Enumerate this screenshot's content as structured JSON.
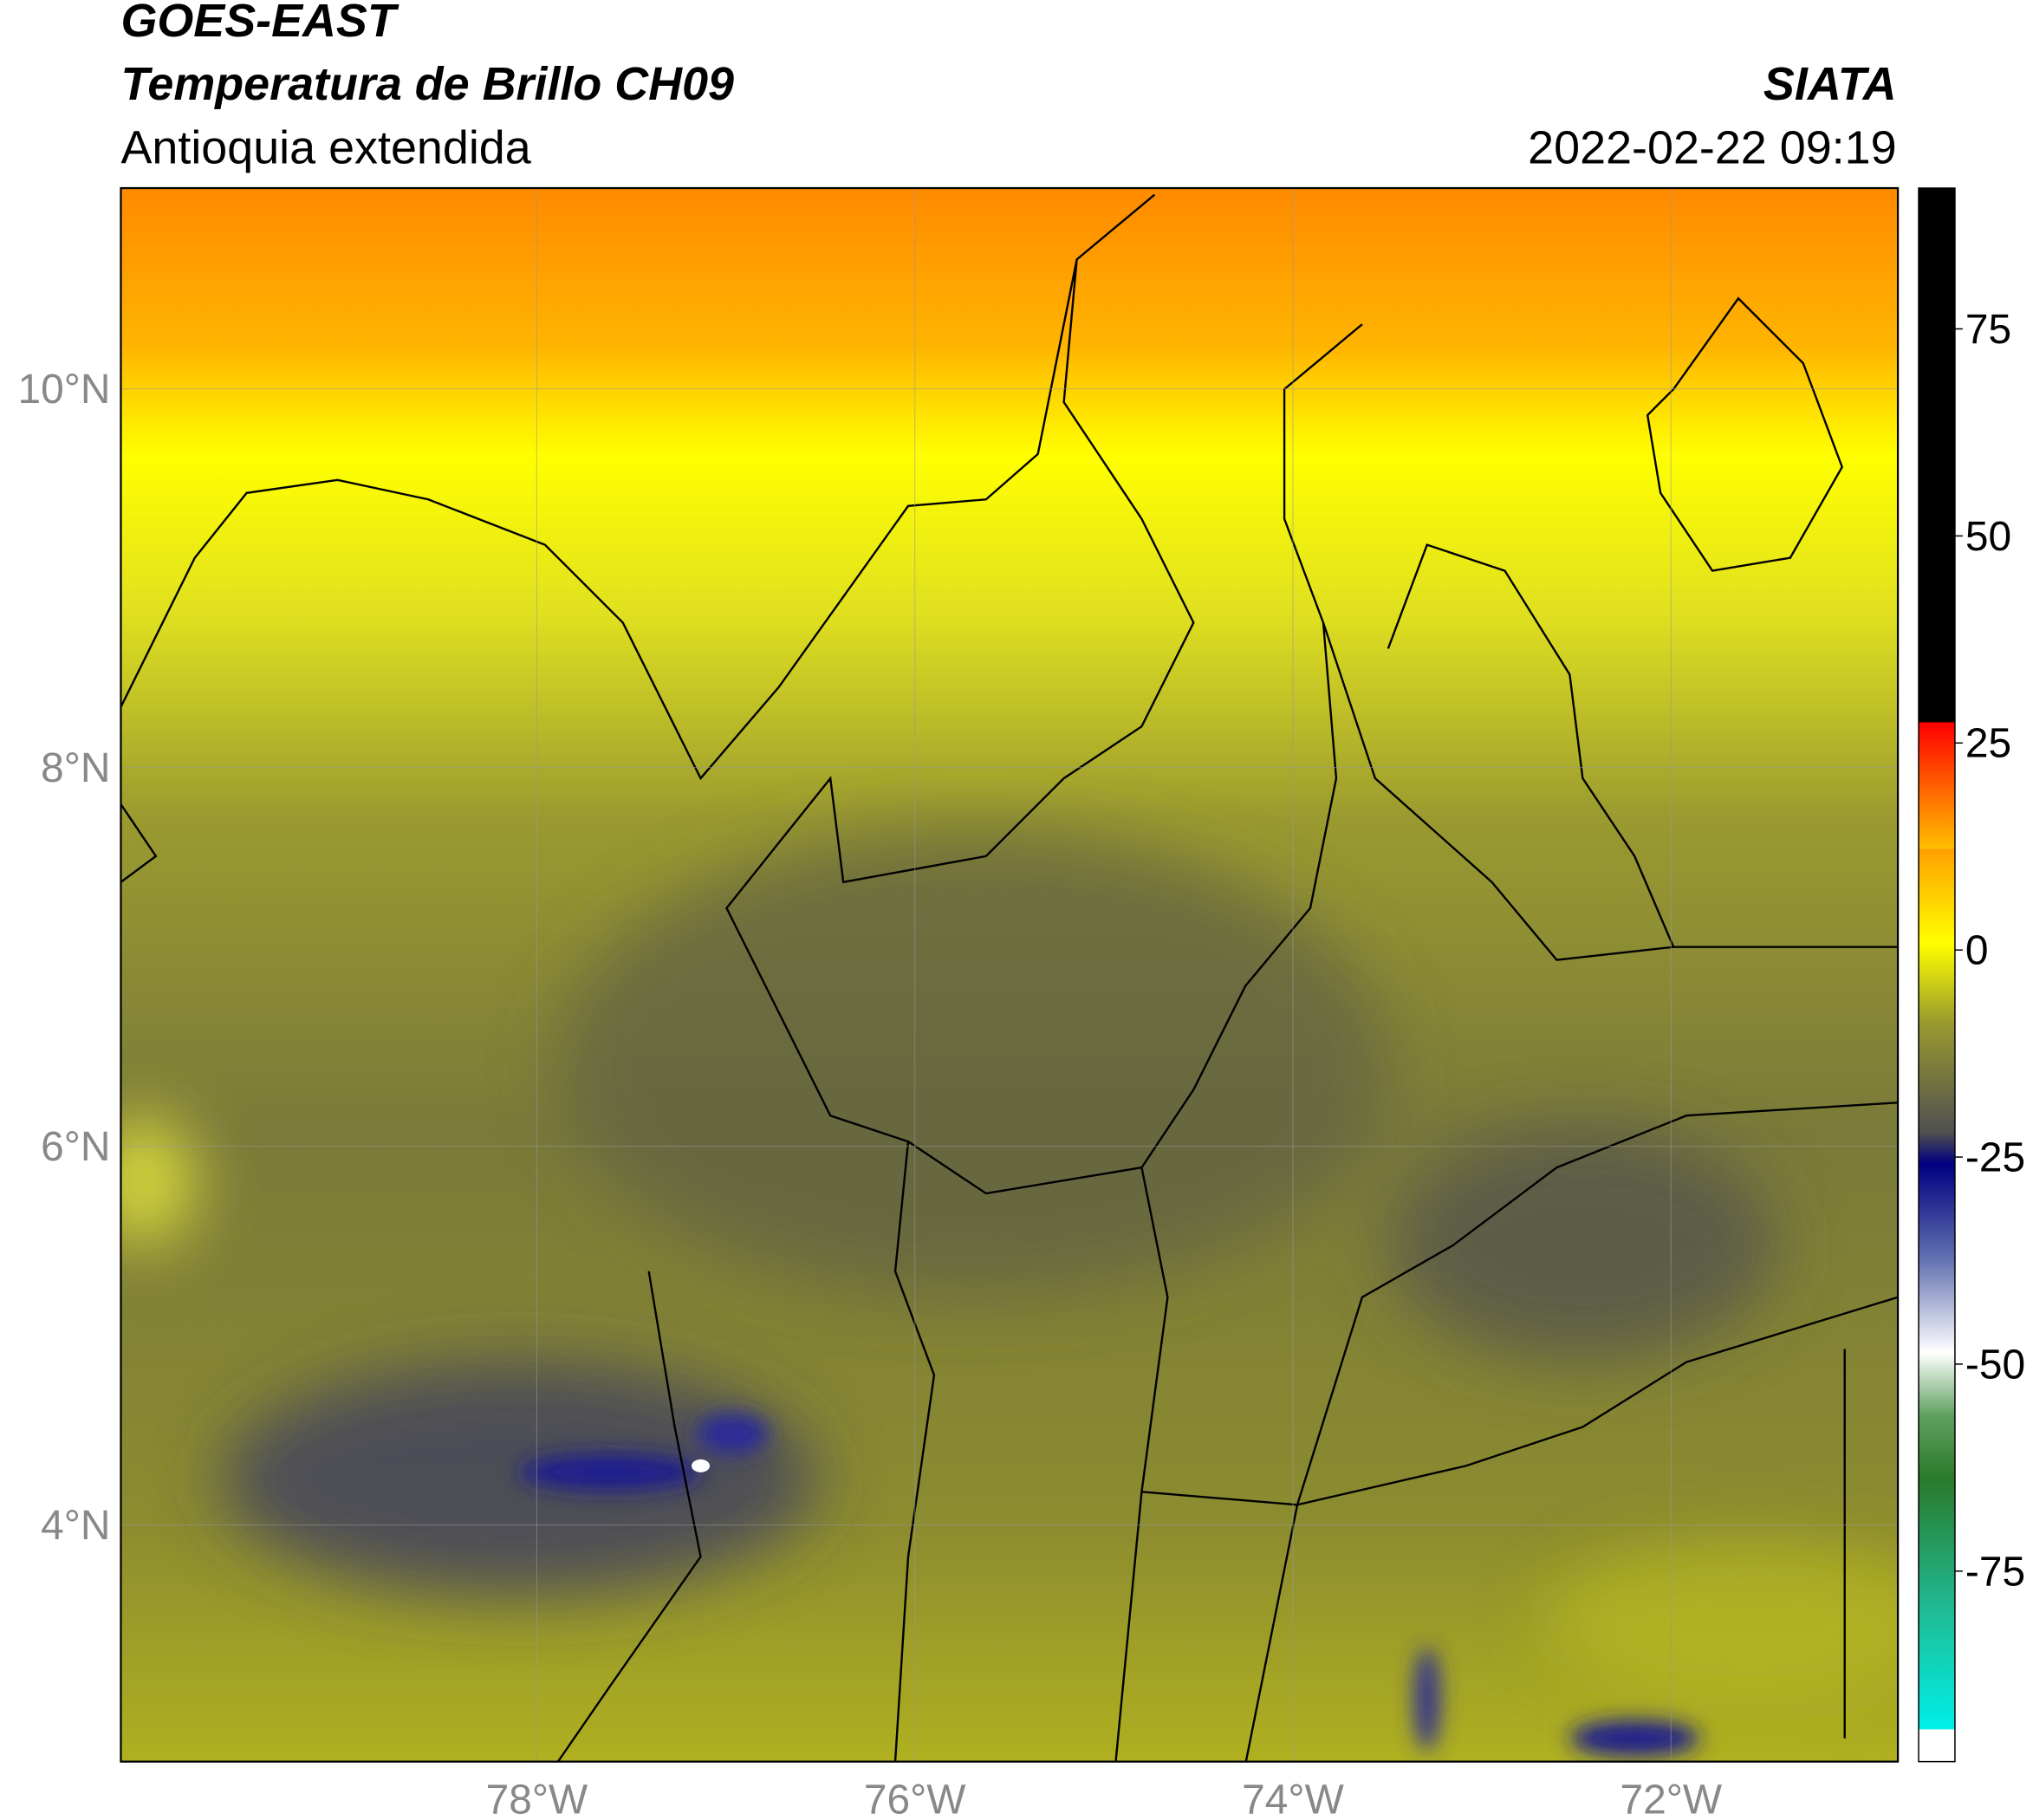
{
  "header": {
    "title_line1": "GOES-EAST",
    "title_line2": "Temperatura de Brillo CH09",
    "subtitle": "Antioquia extendida",
    "org": "SIATA",
    "datetime": "2022-02-22 09:19"
  },
  "map": {
    "xlim": [
      -80.2,
      -70.8
    ],
    "ylim": [
      2.75,
      11.06
    ],
    "xticks": [
      {
        "value": -78,
        "label": "78°W"
      },
      {
        "value": -76,
        "label": "76°W"
      },
      {
        "value": -74,
        "label": "74°W"
      },
      {
        "value": -72,
        "label": "72°W"
      }
    ],
    "yticks": [
      {
        "value": 4,
        "label": "4°N"
      },
      {
        "value": 6,
        "label": "6°N"
      },
      {
        "value": 8,
        "label": "8°N"
      },
      {
        "value": 10,
        "label": "10°N"
      }
    ],
    "grid": true
  },
  "colorbar": {
    "clim": [
      -98,
      92
    ],
    "ticks": [
      -75,
      -50,
      -25,
      0,
      25,
      50,
      75
    ]
  }
}
